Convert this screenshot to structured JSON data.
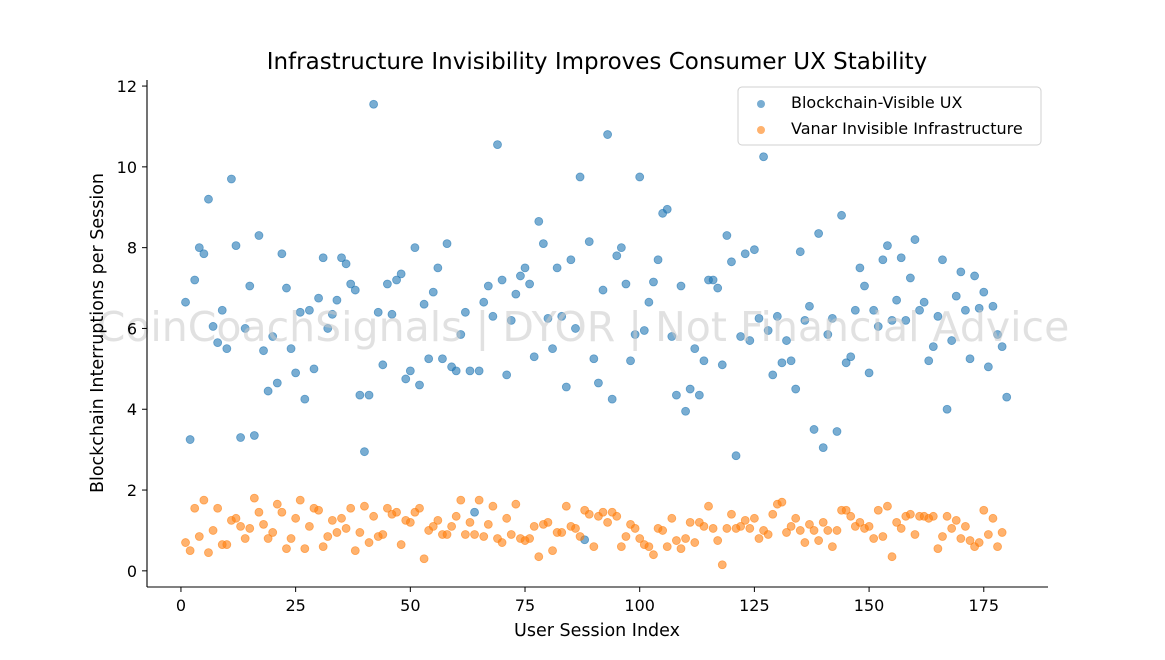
{
  "chart_data": {
    "type": "scatter",
    "title": "Infrastructure Invisibility Improves Consumer UX Stability",
    "xlabel": "User Session Index",
    "ylabel": "Blockchain Interruptions per Session",
    "xlim": [
      -7.4,
      189
    ],
    "ylim": [
      -0.4,
      12.15
    ],
    "xticks": [
      0,
      25,
      50,
      75,
      100,
      125,
      150,
      175
    ],
    "yticks": [
      0,
      2,
      4,
      6,
      8,
      10,
      12
    ],
    "xtick_labels": [
      "0",
      "25",
      "50",
      "75",
      "100",
      "125",
      "150",
      "175"
    ],
    "ytick_labels": [
      "0",
      "2",
      "4",
      "6",
      "8",
      "10",
      "12"
    ],
    "grid": false,
    "legend_position": "top-right",
    "watermark": "CoinCoachSignals | DYOR | Not Financial Advice",
    "series": [
      {
        "name": "Blockchain-Visible UX",
        "color": "#1f77b4",
        "x_start": 1,
        "values": [
          6.65,
          3.25,
          7.2,
          8.0,
          7.85,
          9.2,
          6.05,
          5.65,
          6.45,
          5.5,
          9.7,
          8.05,
          3.3,
          6.0,
          7.05,
          3.35,
          8.3,
          5.45,
          4.45,
          5.8,
          4.65,
          7.85,
          7.0,
          5.5,
          4.9,
          6.4,
          4.25,
          6.45,
          5.0,
          6.75,
          7.75,
          6.0,
          6.35,
          6.7,
          7.75,
          7.6,
          7.1,
          6.95,
          4.35,
          2.95,
          4.35,
          11.55,
          6.4,
          5.1,
          7.1,
          6.35,
          7.2,
          7.35,
          4.75,
          4.95,
          8.0,
          4.6,
          6.6,
          5.25,
          6.9,
          7.5,
          5.25,
          8.1,
          5.05,
          4.95,
          5.85,
          6.4,
          4.95,
          1.45,
          4.95,
          6.65,
          7.05,
          6.3,
          10.55,
          7.2,
          4.85,
          6.2,
          6.85,
          7.3,
          7.5,
          7.1,
          5.3,
          8.65,
          8.1,
          6.25,
          5.5,
          7.5,
          6.3,
          4.55,
          7.7,
          6.0,
          9.75,
          0.77,
          8.15,
          5.25,
          4.65,
          6.95,
          10.8,
          4.25,
          7.8,
          8.0,
          7.1,
          5.2,
          5.85,
          9.75,
          5.95,
          6.65,
          7.15,
          7.7,
          8.85,
          8.95,
          5.8,
          4.35,
          7.05,
          3.95,
          4.5,
          5.5,
          4.35,
          5.2,
          7.2,
          7.2,
          7.0,
          5.1,
          8.3,
          7.65,
          2.85,
          5.8,
          7.85,
          5.7,
          7.95,
          6.25,
          10.25,
          5.95,
          4.85,
          6.3,
          5.15,
          5.7,
          5.2,
          4.5,
          7.9,
          6.2,
          6.55,
          3.5,
          8.35,
          3.05,
          5.85,
          6.25,
          3.45,
          8.8,
          5.15,
          5.3,
          6.45,
          7.5,
          7.05,
          4.9,
          6.45,
          6.05,
          7.7,
          8.05,
          6.2,
          6.7,
          7.75,
          6.2,
          7.25,
          8.2,
          6.45,
          6.65,
          5.2,
          5.55,
          6.3,
          7.7,
          4.0,
          5.7,
          6.8,
          7.4,
          6.45,
          5.25,
          7.3,
          6.5,
          6.9,
          5.05,
          6.55,
          5.85,
          5.55,
          4.3
        ]
      },
      {
        "name": "Vanar Invisible Infrastructure",
        "color": "#ff7f0e",
        "x_start": 1,
        "values": [
          0.7,
          0.5,
          1.55,
          0.85,
          1.75,
          0.45,
          1.0,
          1.55,
          0.65,
          0.65,
          1.25,
          1.3,
          1.1,
          0.8,
          1.05,
          1.8,
          1.45,
          1.15,
          0.8,
          0.95,
          1.65,
          1.45,
          0.55,
          0.8,
          1.3,
          1.75,
          0.55,
          1.1,
          1.55,
          1.5,
          0.6,
          0.85,
          1.25,
          0.95,
          1.3,
          1.05,
          1.55,
          0.5,
          0.95,
          1.6,
          0.7,
          1.35,
          0.85,
          0.9,
          1.55,
          1.4,
          1.45,
          0.65,
          1.25,
          1.2,
          1.45,
          1.55,
          0.3,
          1.0,
          1.1,
          1.25,
          0.9,
          0.9,
          1.1,
          1.35,
          1.75,
          0.9,
          1.2,
          0.9,
          1.75,
          0.85,
          1.15,
          1.6,
          0.8,
          0.7,
          1.3,
          0.9,
          1.65,
          0.8,
          0.75,
          0.8,
          1.1,
          0.35,
          1.15,
          1.2,
          0.5,
          0.95,
          0.95,
          1.6,
          1.1,
          1.05,
          0.85,
          1.5,
          1.4,
          0.6,
          1.35,
          1.45,
          1.2,
          1.45,
          1.35,
          0.6,
          0.85,
          1.15,
          1.05,
          0.8,
          0.65,
          0.6,
          0.4,
          1.05,
          1.0,
          0.6,
          1.3,
          0.75,
          0.55,
          0.8,
          1.2,
          0.7,
          1.2,
          1.1,
          1.6,
          1.05,
          0.75,
          0.15,
          1.05,
          1.4,
          1.05,
          1.1,
          1.25,
          1.05,
          1.3,
          0.8,
          1.0,
          0.9,
          1.4,
          1.65,
          1.7,
          0.95,
          1.1,
          1.3,
          1.0,
          0.7,
          1.15,
          1.0,
          0.75,
          1.2,
          1.0,
          0.6,
          1.0,
          1.5,
          1.5,
          1.35,
          1.1,
          1.2,
          1.05,
          1.1,
          0.8,
          1.5,
          0.85,
          1.6,
          0.35,
          1.2,
          1.05,
          1.35,
          1.4,
          0.9,
          1.35,
          1.35,
          1.3,
          1.35,
          0.55,
          0.85,
          1.35,
          1.05,
          1.25,
          0.8,
          1.1,
          0.75,
          0.6,
          0.7,
          1.5,
          0.9,
          1.3,
          0.6,
          0.95
        ]
      }
    ]
  }
}
